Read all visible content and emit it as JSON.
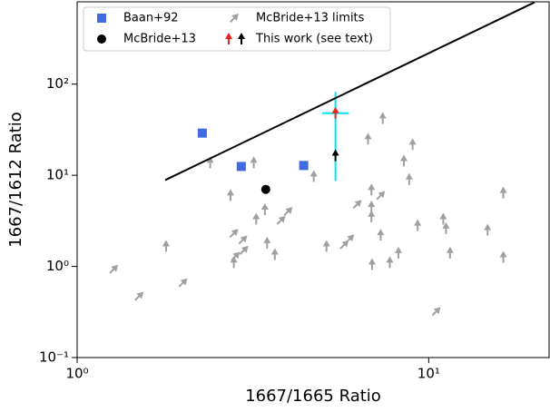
{
  "chart_data": {
    "type": "scatter",
    "xlabel": "1667/1665 Ratio",
    "ylabel": "1667/1612 Ratio",
    "xlog": true,
    "ylog": true,
    "xlim": [
      1,
      22
    ],
    "ylim": [
      0.1,
      800
    ],
    "xticks": [
      {
        "value": 1,
        "label": "10⁰"
      },
      {
        "value": 10,
        "label": "10¹"
      }
    ],
    "yticks": [
      {
        "value": 0.1,
        "label": "10⁻¹"
      },
      {
        "value": 1,
        "label": "10⁰"
      },
      {
        "value": 10,
        "label": "10¹"
      },
      {
        "value": 100,
        "label": "10²"
      }
    ],
    "legend": "upper left",
    "series": [
      {
        "name": "Baan+92",
        "marker": "square",
        "color": "#4169e1",
        "x": [
          2.27,
          2.93,
          4.41
        ],
        "values": [
          29,
          12.5,
          12.8
        ]
      },
      {
        "name": "McBride+13",
        "marker": "circle",
        "color": "#000000",
        "x": [
          3.44
        ],
        "values": [
          7.0
        ]
      },
      {
        "name": "McBride+13 limits",
        "marker": "arrow",
        "color": "#a0a0a0",
        "x": [
          1.27,
          1.5,
          2.0,
          1.79,
          2.39,
          2.73,
          2.79,
          2.79,
          2.82,
          2.96,
          2.98,
          3.18,
          3.23,
          3.42,
          3.47,
          3.65,
          3.8,
          3.98,
          4.71,
          5.12,
          5.75,
          5.96,
          6.26,
          6.72,
          6.87,
          6.87,
          6.87,
          6.9,
          7.3,
          7.3,
          7.4,
          7.75,
          8.2,
          8.5,
          8.8,
          9.0,
          9.3,
          11.0,
          11.2,
          11.5,
          10.5,
          14.7,
          16.3,
          16.3
        ],
        "values": [
          0.93,
          0.47,
          0.66,
          1.66,
          13.7,
          6.0,
          2.3,
          1.1,
          1.29,
          1.95,
          1.5,
          13.7,
          3.3,
          4.2,
          1.8,
          1.35,
          3.2,
          4.0,
          9.7,
          1.66,
          1.73,
          2.0,
          4.8,
          24.9,
          6.9,
          4.5,
          3.5,
          1.05,
          6.0,
          2.2,
          42,
          1.1,
          1.4,
          14.3,
          9.0,
          21.7,
          2.8,
          3.3,
          2.6,
          1.4,
          0.32,
          2.5,
          6.4,
          1.26
        ],
        "directions": [
          "up-right",
          "up-right",
          "up-right",
          "up",
          "up",
          "up",
          "up-right",
          "up",
          "up-right",
          "up-right",
          "up-right",
          "up",
          "up",
          "up",
          "up",
          "up",
          "up-right",
          "up-right",
          "up",
          "up",
          "up-right",
          "up-right",
          "up-right",
          "up",
          "up",
          "up",
          "up",
          "up",
          "up-right",
          "up",
          "up",
          "up",
          "up",
          "up",
          "up",
          "up",
          "up",
          "up",
          "up",
          "up",
          "up-right",
          "up",
          "up",
          "up"
        ]
      },
      {
        "name": "This work (see text)",
        "marker": "arrow",
        "colors": [
          "#e8251b",
          "#000000"
        ],
        "x": [
          5.43,
          5.43
        ],
        "values": [
          48,
          16.4
        ],
        "directions": [
          "up",
          "up"
        ]
      },
      {
        "marker": "line",
        "color": "#000000",
        "x": [
          1.78,
          20
        ],
        "values": [
          8.85,
          790
        ]
      }
    ],
    "errorbar": {
      "color": "#00e5ee",
      "x": 5.43,
      "y": 48,
      "xlow": 4.97,
      "xhigh": 5.93,
      "ylow": 8.65,
      "yhigh": 82
    }
  }
}
